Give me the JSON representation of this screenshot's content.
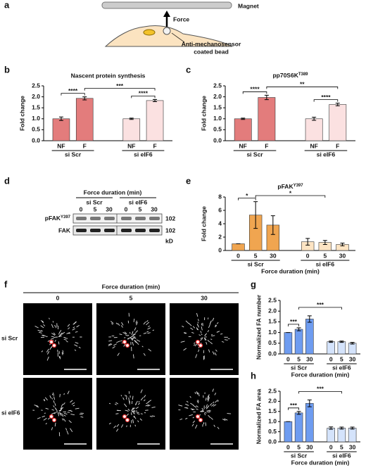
{
  "panel_labels": [
    "a",
    "b",
    "c",
    "d",
    "e",
    "f",
    "g",
    "h"
  ],
  "schematic": {
    "magnet": "Magnet",
    "force": "Force",
    "bead_label": [
      "Anti-mechanosensor",
      "coated bead"
    ]
  },
  "blot": {
    "title": "Force duration (min)",
    "groups": [
      "si Scr",
      "si eIF6"
    ],
    "lanes": [
      "0",
      "5",
      "30",
      "0",
      "5",
      "30"
    ],
    "rows": [
      {
        "label": "pFAK",
        "superscript": "Y397",
        "marker": "102"
      },
      {
        "label": "FAK",
        "marker": "102"
      }
    ],
    "unit": "kD"
  },
  "images": {
    "title": "Force duration (min)",
    "columns": [
      "0",
      "5",
      "30"
    ],
    "rows": [
      "si Scr",
      "si eIF6"
    ]
  },
  "chart_data": [
    {
      "type": "bar",
      "title": "Nascent protein synthesis",
      "ylabel": "Fold change",
      "groups": [
        "si Scr",
        "si eIF6"
      ],
      "categories": [
        "NF",
        "F",
        "NF",
        "F"
      ],
      "values": [
        1.0,
        1.93,
        1.0,
        1.83
      ],
      "errors": [
        0.08,
        0.07,
        0.03,
        0.05
      ],
      "colors": [
        "#e37c7c",
        "#e37c7c",
        "#fbe1e1",
        "#fbe1e1"
      ],
      "ylim": [
        0,
        2.5
      ],
      "yticks": [
        {
          "value": 0,
          "label": "0.0"
        },
        0.5,
        {
          "value": 1,
          "label": "1.0"
        },
        1.5,
        {
          "value": 2,
          "label": "2.0"
        },
        2.5
      ],
      "annotations": [
        "****",
        "***",
        "****"
      ]
    },
    {
      "type": "bar",
      "title": "pp70S6K",
      "title_superscript": "T389",
      "ylabel": "Fold change",
      "groups": [
        "si Scr",
        "si eIF6"
      ],
      "categories": [
        "NF",
        "F",
        "NF",
        "F"
      ],
      "values": [
        1.0,
        1.97,
        1.0,
        1.65
      ],
      "errors": [
        0.03,
        0.1,
        0.07,
        0.06
      ],
      "colors": [
        "#e37c7c",
        "#e37c7c",
        "#fbe1e1",
        "#fbe1e1"
      ],
      "ylim": [
        0,
        2.5
      ],
      "yticks": [
        {
          "value": 0,
          "label": "0.0"
        },
        0.5,
        {
          "value": 1,
          "label": "1.0"
        },
        1.5,
        {
          "value": 2,
          "label": "2.0"
        },
        2.5
      ],
      "annotations": [
        "****",
        "**",
        "****"
      ]
    },
    {
      "type": "bar",
      "title": "pFAK",
      "title_superscript": "Y397",
      "ylabel": "Fold change",
      "xlabel": "Force duration (min)",
      "groups": [
        "si Scr",
        "si eIF6"
      ],
      "categories": [
        "0",
        "5",
        "30",
        "0",
        "5",
        "30"
      ],
      "values": [
        1,
        5.3,
        3.8,
        1.3,
        1.2,
        0.9
      ],
      "errors": [
        0,
        2.0,
        1.4,
        0.5,
        0.3,
        0.2
      ],
      "colors": [
        "#f0a550",
        "#f0a550",
        "#f0a550",
        "#fde4c3",
        "#fde4c3",
        "#fde4c3"
      ],
      "ylim": [
        0,
        8
      ],
      "yticks": [
        0,
        2,
        4,
        6,
        8
      ],
      "annotations": [
        "*",
        "*"
      ]
    },
    {
      "type": "bar",
      "ylabel": "Normalized FA number",
      "xlabel": "Force duration (min)",
      "groups": [
        "si Scr",
        "si eIF6"
      ],
      "categories": [
        "0",
        "5",
        "30",
        "0",
        "5",
        "30"
      ],
      "values": [
        1,
        1.15,
        1.63,
        0.57,
        0.57,
        0.5
      ],
      "errors": [
        0,
        0.07,
        0.15,
        0.03,
        0.03,
        0.04
      ],
      "colors": [
        "#6e9cf0",
        "#6e9cf0",
        "#6e9cf0",
        "#d4e3fb",
        "#d4e3fb",
        "#d4e3fb"
      ],
      "ylim": [
        0,
        2.5
      ],
      "yticks": [
        {
          "value": 0,
          "label": "0.0"
        },
        0.5,
        {
          "value": 1,
          "label": "1.0"
        },
        1.5,
        {
          "value": 2,
          "label": "2.0"
        },
        2.5
      ],
      "annotations": [
        "***",
        "***"
      ]
    },
    {
      "type": "bar",
      "ylabel": "Normalized FA area",
      "xlabel": "Force duration (min)",
      "groups": [
        "si Scr",
        "si eIF6"
      ],
      "categories": [
        "0",
        "5",
        "30",
        "0",
        "5",
        "30"
      ],
      "values": [
        1,
        1.43,
        1.9,
        0.68,
        0.68,
        0.68
      ],
      "errors": [
        0,
        0.07,
        0.17,
        0.06,
        0.05,
        0.05
      ],
      "colors": [
        "#6e9cf0",
        "#6e9cf0",
        "#6e9cf0",
        "#d4e3fb",
        "#d4e3fb",
        "#d4e3fb"
      ],
      "ylim": [
        0,
        2.5
      ],
      "yticks": [
        {
          "value": 0,
          "label": "0.0"
        },
        0.5,
        {
          "value": 1,
          "label": "1.0"
        },
        1.5,
        {
          "value": 2,
          "label": "2.0"
        },
        2.5
      ],
      "annotations": [
        "***",
        "***"
      ]
    }
  ]
}
